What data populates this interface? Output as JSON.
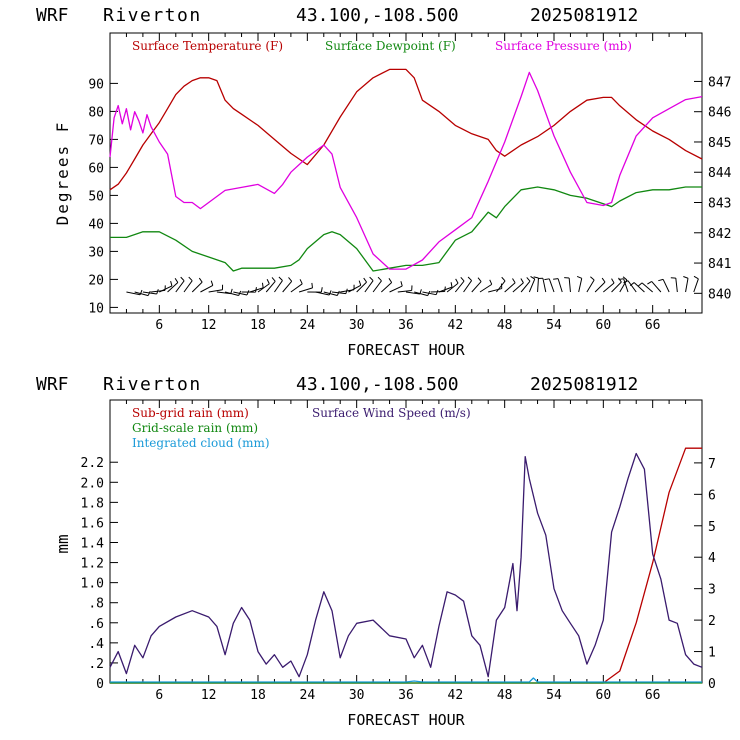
{
  "header_top": {
    "model": "WRF",
    "station": "Riverton",
    "coords": "43.100,-108.500",
    "init": "2025081912"
  },
  "header_bottom": {
    "model": "WRF",
    "station": "Riverton",
    "coords": "43.100,-108.500",
    "init": "2025081912"
  },
  "chart_data": [
    {
      "type": "line",
      "xlabel": "FORECAST HOUR",
      "ylabel": "Degrees F",
      "x_ticks": [
        "6",
        "12",
        "18",
        "24",
        "30",
        "36",
        "42",
        "48",
        "54",
        "60",
        "66"
      ],
      "xlim": [
        0,
        72
      ],
      "ylim": [
        8,
        108
      ],
      "y_ticks": [
        "10",
        "20",
        "30",
        "40",
        "50",
        "60",
        "70",
        "80",
        "90"
      ],
      "y2label": "",
      "y2lim": [
        839.35,
        848.6
      ],
      "y2_ticks": [
        "840",
        "841",
        "842",
        "843",
        "844",
        "845",
        "846",
        "847"
      ],
      "colors": {
        "temperature": "#b80000",
        "dewpoint": "#118811",
        "pressure": "#e000e0",
        "barbs": "#000000"
      },
      "legend_placement": "top-left",
      "series": [
        {
          "name": "Surface Temperature (F)",
          "axis": "left",
          "x": [
            0,
            1,
            2,
            3,
            4,
            5,
            6,
            7,
            8,
            9,
            10,
            11,
            12,
            13,
            14,
            15,
            16,
            18,
            20,
            22,
            23,
            24,
            26,
            28,
            30,
            32,
            34,
            36,
            37,
            38,
            40,
            42,
            44,
            46,
            47,
            48,
            50,
            52,
            54,
            56,
            58,
            60,
            61,
            62,
            64,
            66,
            68,
            70,
            72
          ],
          "values": [
            52,
            54,
            58,
            63,
            68,
            72,
            76,
            81,
            86,
            89,
            91,
            92,
            92,
            91,
            84,
            81,
            79,
            75,
            70,
            65,
            63,
            61,
            68,
            78,
            87,
            92,
            95,
            95,
            92,
            84,
            80,
            75,
            72,
            70,
            66,
            64,
            68,
            71,
            75,
            80,
            84,
            85,
            85,
            82,
            77,
            73,
            70,
            66,
            63
          ]
        },
        {
          "name": "Surface Dewpoint (F)",
          "axis": "left",
          "x": [
            0,
            2,
            4,
            6,
            8,
            10,
            12,
            14,
            15,
            16,
            18,
            20,
            22,
            23,
            24,
            26,
            27,
            28,
            30,
            32,
            34,
            36,
            38,
            40,
            42,
            44,
            46,
            47,
            48,
            50,
            52,
            54,
            56,
            58,
            60,
            61,
            62,
            64,
            66,
            68,
            70,
            72
          ],
          "values": [
            35,
            35,
            37,
            37,
            34,
            30,
            28,
            26,
            23,
            24,
            24,
            24,
            25,
            27,
            31,
            36,
            37,
            36,
            31,
            23,
            24,
            25,
            25,
            26,
            34,
            37,
            44,
            42,
            46,
            52,
            53,
            52,
            50,
            49,
            47,
            46,
            48,
            51,
            52,
            52,
            53,
            53
          ]
        },
        {
          "name": "Surface Pressure (mb)",
          "axis": "right",
          "x": [
            0,
            0.5,
            1,
            1.5,
            2,
            2.5,
            3,
            3.5,
            4,
            4.5,
            5,
            6,
            7,
            8,
            9,
            10,
            11,
            12,
            14,
            16,
            18,
            20,
            21,
            22,
            24,
            26,
            27,
            28,
            30,
            32,
            34,
            36,
            38,
            40,
            42,
            44,
            46,
            48,
            50,
            51,
            52,
            54,
            56,
            58,
            60,
            61,
            62,
            64,
            66,
            68,
            70,
            72
          ],
          "values": [
            844.5,
            845.8,
            846.2,
            845.6,
            846.1,
            845.4,
            846.0,
            845.7,
            845.3,
            845.9,
            845.5,
            845.0,
            844.6,
            843.2,
            843.0,
            843.0,
            842.8,
            843.0,
            843.4,
            843.5,
            843.6,
            843.3,
            843.6,
            844.0,
            844.5,
            844.9,
            844.6,
            843.5,
            842.5,
            841.3,
            840.8,
            840.8,
            841.1,
            841.7,
            842.1,
            842.5,
            843.7,
            845.0,
            846.5,
            847.3,
            846.7,
            845.2,
            844.0,
            843.0,
            842.9,
            843.0,
            843.9,
            845.2,
            845.8,
            846.1,
            846.4,
            846.5
          ]
        }
      ]
    },
    {
      "type": "line",
      "xlabel": "FORECAST HOUR",
      "ylabel": "mm",
      "x_ticks": [
        "6",
        "12",
        "18",
        "24",
        "30",
        "36",
        "42",
        "48",
        "54",
        "60",
        "66"
      ],
      "xlim": [
        0,
        72
      ],
      "ylim": [
        0,
        2.82
      ],
      "y_ticks": [
        "0",
        ".2",
        ".4",
        ".6",
        ".8",
        "1.0",
        "1.2",
        "1.4",
        "1.6",
        "1.8",
        "2.0",
        "2.2"
      ],
      "y2label": "",
      "y2lim": [
        0,
        9.0
      ],
      "y2_ticks": [
        "0",
        "1",
        "2",
        "3",
        "4",
        "5",
        "6",
        "7"
      ],
      "colors": {
        "subgrid_rain": "#b80000",
        "grid_rain": "#118811",
        "cloud": "#1a9ad8",
        "wind": "#3a1b6e"
      },
      "legend_placement": "top-left",
      "series": [
        {
          "name": "Sub-grid rain (mm)",
          "axis": "left",
          "x": [
            0,
            60,
            62,
            64,
            66,
            68,
            70,
            72
          ],
          "values": [
            0,
            0,
            0.12,
            0.6,
            1.2,
            1.9,
            2.34,
            2.34
          ]
        },
        {
          "name": "Grid-scale rain (mm)",
          "axis": "left",
          "x": [
            0,
            72
          ],
          "values": [
            0,
            0
          ]
        },
        {
          "name": "Integrated cloud (mm)",
          "axis": "left",
          "x": [
            0,
            36,
            37,
            38,
            51,
            51.5,
            52,
            72
          ],
          "values": [
            0.01,
            0.01,
            0.02,
            0.01,
            0.01,
            0.05,
            0.01,
            0.01
          ]
        },
        {
          "name": "Surface Wind Speed (m/s)",
          "axis": "right",
          "x": [
            0,
            1,
            2,
            3,
            4,
            5,
            6,
            8,
            10,
            12,
            13,
            14,
            15,
            16,
            17,
            18,
            19,
            20,
            21,
            22,
            23,
            24,
            25,
            26,
            27,
            28,
            29,
            30,
            32,
            34,
            36,
            37,
            38,
            39,
            40,
            41,
            42,
            43,
            44,
            45,
            46,
            47,
            48,
            49,
            49.5,
            50,
            50.5,
            51,
            52,
            53,
            54,
            55,
            56,
            57,
            58,
            59,
            60,
            61,
            62,
            63,
            64,
            65,
            66,
            67,
            68,
            69,
            70,
            71,
            72
          ],
          "values": [
            0.5,
            1.0,
            0.3,
            1.2,
            0.8,
            1.5,
            1.8,
            2.1,
            2.3,
            2.1,
            1.8,
            0.9,
            1.9,
            2.4,
            2.0,
            1.0,
            0.6,
            0.9,
            0.5,
            0.7,
            0.2,
            0.9,
            2.0,
            2.9,
            2.3,
            0.8,
            1.5,
            1.9,
            2.0,
            1.5,
            1.4,
            0.8,
            1.2,
            0.5,
            1.8,
            2.9,
            2.8,
            2.6,
            1.5,
            1.2,
            0.2,
            2.0,
            2.4,
            3.8,
            2.3,
            4.0,
            7.2,
            6.5,
            5.4,
            4.7,
            3.0,
            2.3,
            1.9,
            1.5,
            0.6,
            1.2,
            2.0,
            4.8,
            5.6,
            6.5,
            7.3,
            6.8,
            4.1,
            3.3,
            2.0,
            1.9,
            0.9,
            0.6,
            0.5
          ]
        }
      ]
    }
  ]
}
